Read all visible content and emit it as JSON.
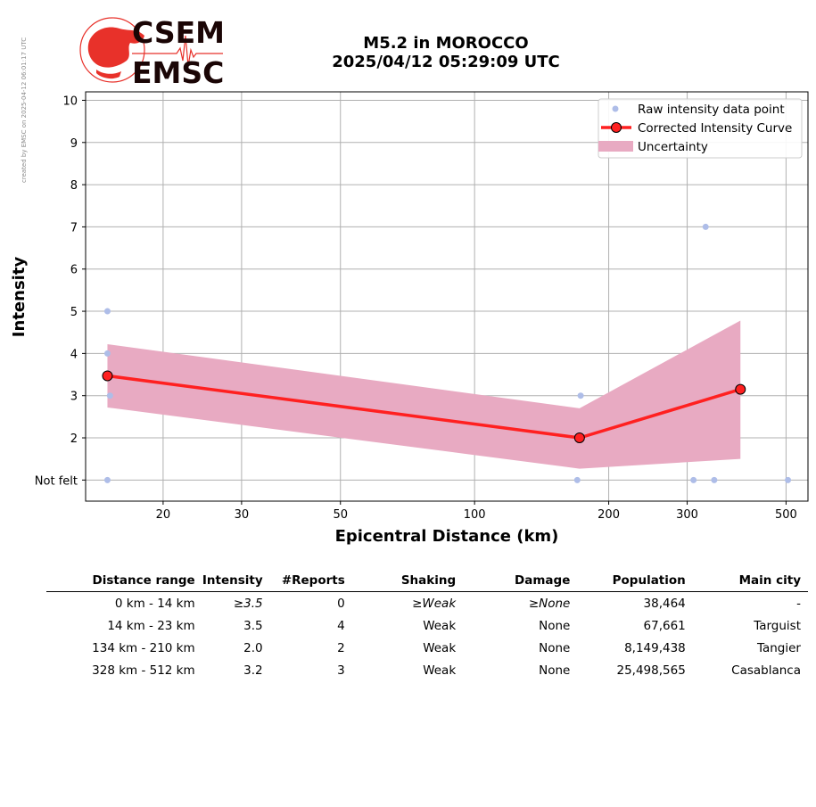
{
  "side_stamp": "created by EMSC on 2025-04-12 06:01:17 UTC",
  "logo": {
    "line1": "CSEM",
    "line2": "EMSC"
  },
  "title": {
    "line1": "M5.2 in MOROCCO",
    "line2": "2025/04/12 05:29:09 UTC"
  },
  "chart_data": {
    "type": "line",
    "xlabel": "Epicentral Distance (km)",
    "ylabel": "Intensity",
    "x_scale": "log",
    "xlim": [
      13.4,
      560
    ],
    "ylim": [
      0.5,
      10.2
    ],
    "x_ticks": [
      20,
      30,
      50,
      100,
      200,
      300,
      500
    ],
    "y_ticks": [
      1,
      2,
      3,
      4,
      5,
      6,
      7,
      8,
      9,
      10
    ],
    "y_tick_labels": [
      "Not felt",
      "2",
      "3",
      "4",
      "5",
      "6",
      "7",
      "8",
      "9",
      "10"
    ],
    "grid": true,
    "legend_position": "top-right",
    "series": [
      {
        "name": "Raw intensity data point",
        "kind": "scatter",
        "color": "#aebde8",
        "points": [
          [
            15,
            5
          ],
          [
            15,
            4
          ],
          [
            15.2,
            3
          ],
          [
            15,
            1
          ],
          [
            173,
            3
          ],
          [
            170,
            1
          ],
          [
            330,
            7
          ],
          [
            310,
            1
          ],
          [
            345,
            1
          ],
          [
            505,
            1
          ]
        ]
      },
      {
        "name": "Corrected Intensity Curve",
        "kind": "line",
        "color": "#ff2020",
        "points": [
          [
            15,
            3.47
          ],
          [
            172,
            2.0
          ],
          [
            395,
            3.15
          ]
        ]
      },
      {
        "name": "Uncertainty",
        "kind": "band",
        "color": "#e8aac2",
        "x": [
          15,
          172,
          395
        ],
        "lower": [
          2.72,
          1.27,
          1.5
        ],
        "upper": [
          4.22,
          2.7,
          4.78
        ]
      }
    ]
  },
  "table": {
    "headers": [
      "Distance range",
      "Intensity",
      "#Reports",
      "Shaking",
      "Damage",
      "Population",
      "Main city"
    ],
    "rows": [
      [
        "0 km -   14 km",
        "≥3.5",
        "0",
        "≥Weak",
        "≥None",
        "38,464",
        "-"
      ],
      [
        "14 km -   23 km",
        "3.5",
        "4",
        "Weak",
        "None",
        "67,661",
        "Targuist"
      ],
      [
        "134 km -  210 km",
        "2.0",
        "2",
        "Weak",
        "None",
        "8,149,438",
        "Tangier"
      ],
      [
        "328 km -  512 km",
        "3.2",
        "3",
        "Weak",
        "None",
        "25,498,565",
        "Casablanca"
      ]
    ]
  }
}
